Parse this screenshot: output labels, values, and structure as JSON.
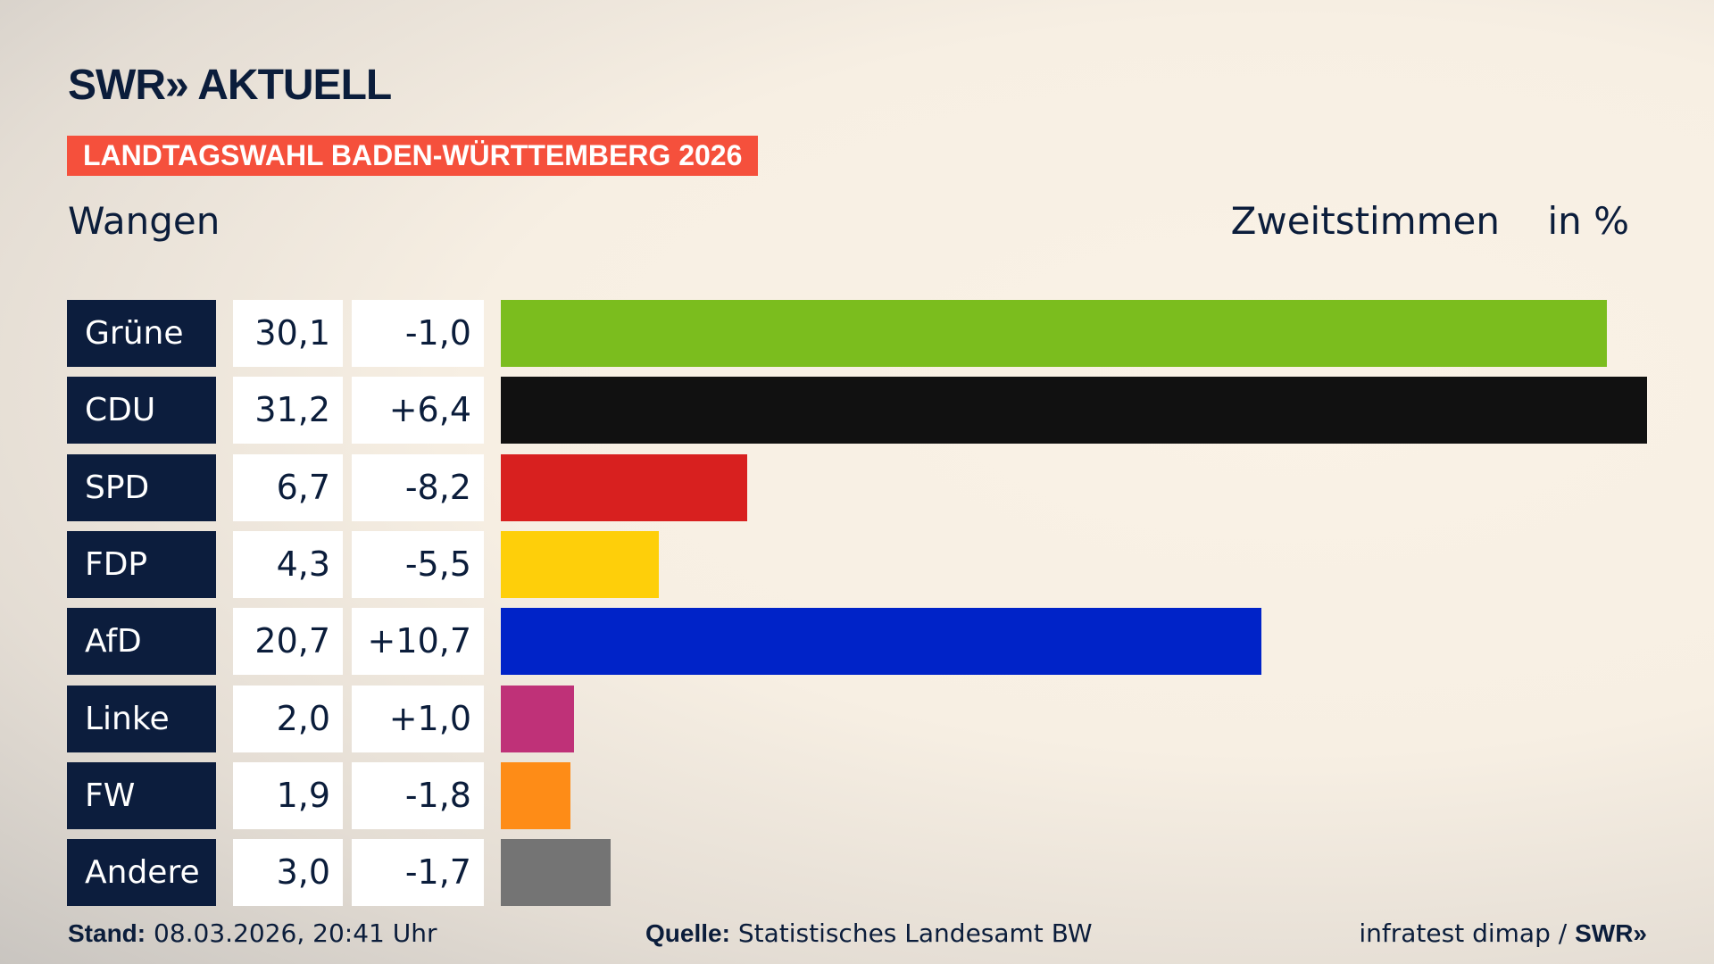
{
  "header": {
    "logo": "SWR» AKTUELL",
    "banner": "LANDTAGSWAHL BADEN-WÜRTTEMBERG 2026",
    "region": "Wangen",
    "measure": "Zweitstimmen",
    "unit": "in %"
  },
  "chart_data": {
    "type": "bar",
    "orientation": "horizontal",
    "xlim": [
      0,
      31.2
    ],
    "categories": [
      "Grüne",
      "CDU",
      "SPD",
      "FDP",
      "AfD",
      "Linke",
      "FW",
      "Andere"
    ],
    "values": [
      30.1,
      31.2,
      6.7,
      4.3,
      20.7,
      2.0,
      1.9,
      3.0
    ],
    "value_labels": [
      "30,1",
      "31,2",
      "6,7",
      "4,3",
      "20,7",
      "2,0",
      "1,9",
      "3,0"
    ],
    "diff_labels": [
      "-1,0",
      "+6,4",
      "-8,2",
      "-5,5",
      "+10,7",
      "+1,0",
      "-1,8",
      "-1,7"
    ],
    "colors": [
      "#7bbd1e",
      "#111111",
      "#d8201f",
      "#fecf0a",
      "#0023c8",
      "#bf3178",
      "#fe8c17",
      "#747474"
    ]
  },
  "footer": {
    "stand_label": "Stand:",
    "stand_value": "08.03.2026, 20:41 Uhr",
    "source_label": "Quelle:",
    "source_value": "Statistisches Landesamt BW",
    "credit": "infratest dimap / ",
    "credit_brand": "SWR»"
  }
}
